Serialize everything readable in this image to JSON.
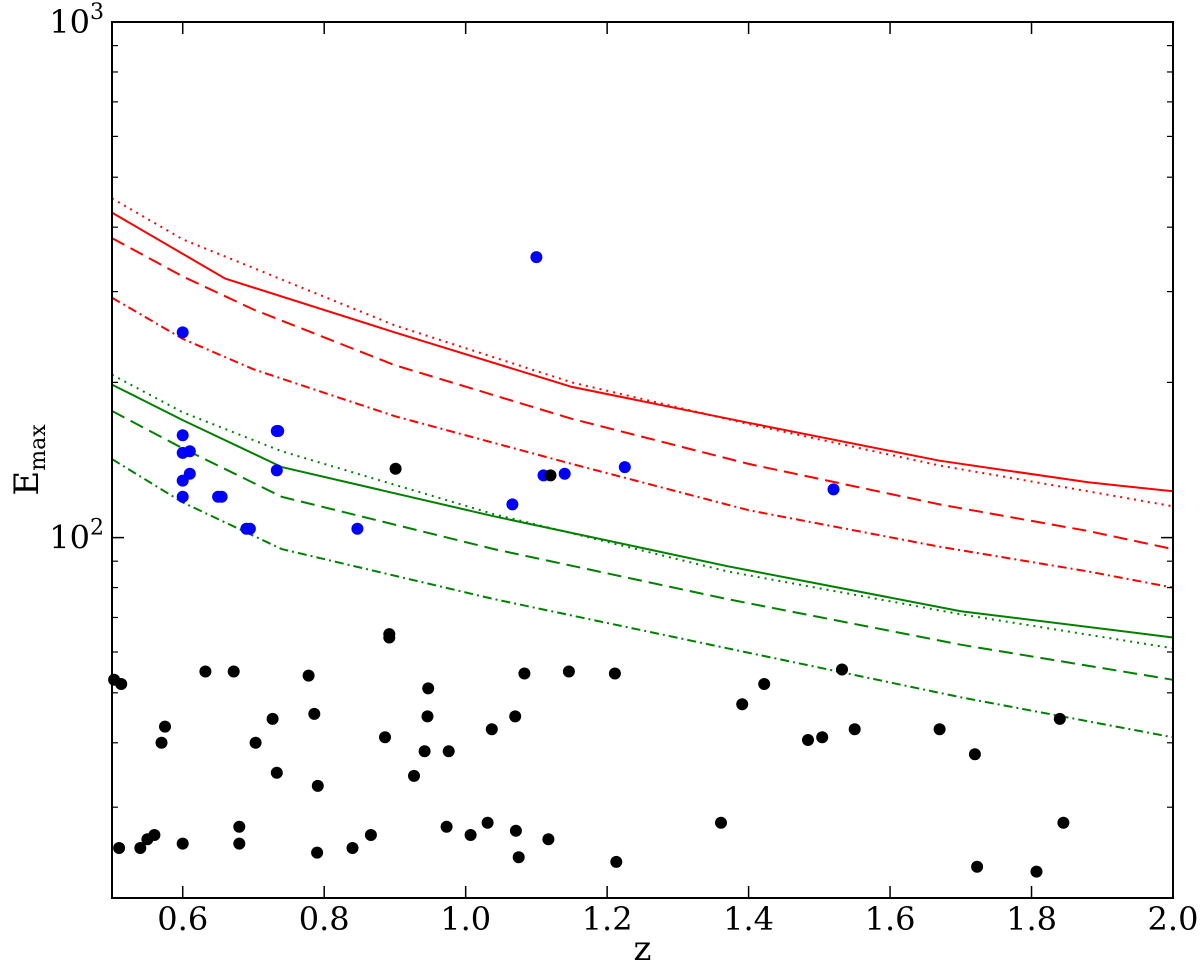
{
  "chart_data": {
    "type": "scatter",
    "title": "",
    "xlabel": "z",
    "ylabel": {
      "main": "E",
      "sub": "max"
    },
    "xlim": [
      0.5,
      2.0
    ],
    "ylim": [
      20,
      1000
    ],
    "yscale": "log",
    "grid": false,
    "legend": "none",
    "xticks": [
      0.6,
      0.8,
      1.0,
      1.2,
      1.4,
      1.6,
      1.8,
      2.0
    ],
    "xtick_labels": [
      "0.6",
      "0.8",
      "1.0",
      "1.2",
      "1.4",
      "1.6",
      "1.8",
      "2.0"
    ],
    "yticks_major": [
      {
        "value": 100,
        "base": "10",
        "exp": "2"
      },
      {
        "value": 1000,
        "base": "10",
        "exp": "3"
      }
    ],
    "yticks_minor": [
      30,
      40,
      50,
      60,
      70,
      80,
      90,
      200,
      300,
      400,
      500,
      600,
      700,
      800,
      900
    ],
    "colors": {
      "red": "#ff0000",
      "green": "#008000",
      "blue": "#0000ff",
      "black": "#000000"
    },
    "lines": [
      {
        "color": "#ff0000",
        "style": "solid",
        "x": [
          0.5,
          0.66,
          0.9,
          1.15,
          1.4,
          1.67,
          1.88,
          2.0
        ],
        "y": [
          427,
          318,
          250,
          196,
          167,
          141,
          128,
          123
        ]
      },
      {
        "color": "#ff0000",
        "style": "dotted",
        "x": [
          0.5,
          0.6,
          0.9,
          1.15,
          1.4,
          1.67,
          1.88,
          2.0
        ],
        "y": [
          455,
          379,
          258,
          200,
          166,
          138,
          123,
          115
        ]
      },
      {
        "color": "#ff0000",
        "style": "dashed",
        "x": [
          0.5,
          0.6,
          0.7,
          0.9,
          1.15,
          1.4,
          1.67,
          1.88,
          2.0
        ],
        "y": [
          381,
          321,
          277,
          216,
          170,
          139,
          116,
          103,
          95
        ]
      },
      {
        "color": "#ff0000",
        "style": "dashdot",
        "x": [
          0.5,
          0.6,
          0.7,
          0.9,
          1.15,
          1.4,
          1.67,
          1.88,
          2.0
        ],
        "y": [
          292,
          243,
          212,
          172,
          139,
          113,
          96,
          86,
          80
        ]
      },
      {
        "color": "#008000",
        "style": "solid",
        "x": [
          0.5,
          0.6,
          0.74,
          1.04,
          1.37,
          1.7,
          2.0
        ],
        "y": [
          198,
          169,
          137,
          110,
          88,
          72,
          64
        ]
      },
      {
        "color": "#008000",
        "style": "dotted",
        "x": [
          0.5,
          0.6,
          0.74,
          1.04,
          1.37,
          1.7,
          2.0
        ],
        "y": [
          207,
          175,
          147,
          111,
          86,
          71,
          61
        ]
      },
      {
        "color": "#008000",
        "style": "dashed",
        "x": [
          0.5,
          0.6,
          0.74,
          1.04,
          1.37,
          1.7,
          2.0
        ],
        "y": [
          176,
          149,
          120,
          95,
          76,
          62,
          53
        ]
      },
      {
        "color": "#008000",
        "style": "dashdot",
        "x": [
          0.5,
          0.6,
          0.74,
          1.04,
          1.37,
          1.7,
          2.0
        ],
        "y": [
          142,
          117,
          95,
          76,
          61,
          49,
          41
        ]
      }
    ],
    "series": [
      {
        "color": "#0000ff",
        "x": [
          0.6,
          0.6,
          0.6,
          0.61,
          0.61,
          0.6,
          0.6,
          0.65,
          0.655,
          0.69,
          0.695,
          0.733,
          0.735,
          0.733,
          0.847,
          1.066,
          1.1,
          1.11,
          1.14,
          1.225,
          1.52
        ],
        "y": [
          250,
          158,
          146,
          147,
          133,
          129,
          120,
          120,
          120,
          104,
          104,
          161,
          161,
          135,
          104,
          116,
          350,
          132,
          133,
          137,
          124
        ]
      },
      {
        "color": "#000000",
        "x": [
          0.503,
          0.513,
          0.51,
          0.54,
          0.55,
          0.56,
          0.57,
          0.575,
          0.6,
          0.632,
          0.672,
          0.68,
          0.68,
          0.703,
          0.727,
          0.733,
          0.778,
          0.786,
          0.791,
          0.79,
          0.84,
          0.866,
          0.886,
          0.892,
          0.892,
          0.901,
          0.927,
          0.942,
          0.946,
          0.947,
          0.973,
          0.976,
          1.007,
          1.031,
          1.037,
          1.071,
          1.07,
          1.075,
          1.083,
          1.117,
          1.12,
          1.146,
          1.211,
          1.213,
          1.361,
          1.391,
          1.422,
          1.484,
          1.504,
          1.532,
          1.55,
          1.67,
          1.72,
          1.723,
          1.807,
          1.84,
          1.845
        ],
        "y": [
          53,
          52,
          25,
          25,
          26,
          26.5,
          40,
          43,
          25.5,
          55,
          55,
          25.5,
          27.5,
          40,
          44.5,
          35,
          54,
          45.5,
          33,
          24.5,
          25,
          26.5,
          41,
          65,
          64,
          136,
          34.5,
          38.5,
          45,
          51,
          27.5,
          38.5,
          26.5,
          28,
          42.5,
          27,
          45,
          24,
          54.5,
          26,
          132,
          55,
          54.5,
          23.5,
          28,
          47.5,
          52,
          40.5,
          41,
          55.5,
          42.5,
          42.5,
          38,
          23,
          22.5,
          44.5,
          28
        ]
      }
    ]
  }
}
